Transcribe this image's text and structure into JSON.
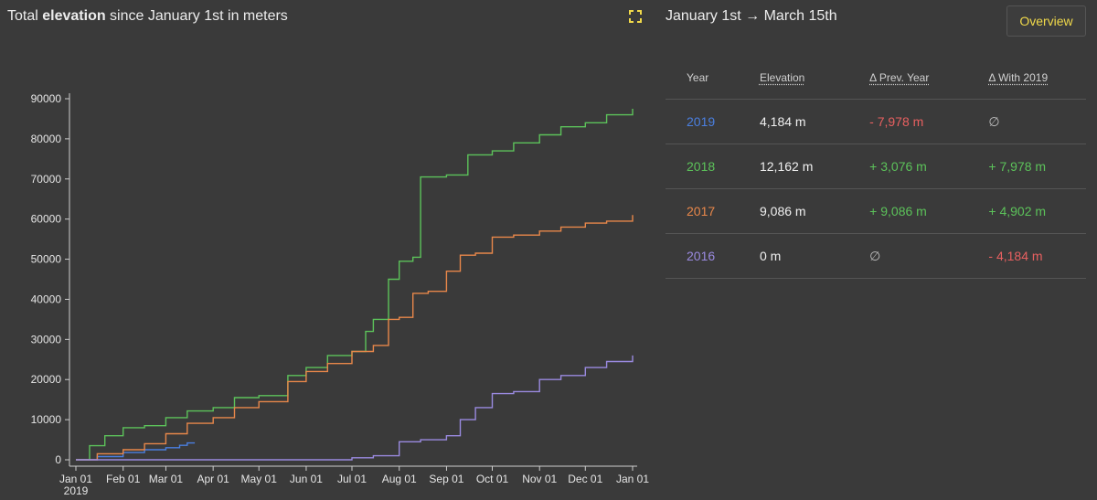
{
  "header": {
    "title_pre": "Total ",
    "title_bold": "elevation",
    "title_post": " since January 1st in meters",
    "range_label": "January 1st → March 15th",
    "overview_label": "Overview"
  },
  "table": {
    "columns": [
      "Year",
      "Elevation",
      "Δ Prev. Year",
      "Δ With 2019"
    ],
    "rows": [
      {
        "year": "2019",
        "elevation": "4,184 m",
        "prev": "- 7,978 m",
        "with2019": "∅"
      },
      {
        "year": "2018",
        "elevation": "12,162 m",
        "prev": "+ 3,076 m",
        "with2019": "+ 7,978 m"
      },
      {
        "year": "2017",
        "elevation": "9,086 m",
        "prev": "+ 9,086 m",
        "with2019": "+ 4,902 m"
      },
      {
        "year": "2016",
        "elevation": "0 m",
        "prev": "∅",
        "with2019": "- 4,184 m"
      }
    ]
  },
  "colors": {
    "2019": "#4a7fe0",
    "2018": "#5cc25a",
    "2017": "#e8874a",
    "2016": "#9a8ae0",
    "accent": "#f0d94a",
    "negative": "#e86060"
  },
  "chart_data": {
    "type": "line",
    "title": "Total elevation since January 1st in meters",
    "xlabel": "",
    "ylabel": "",
    "ylim": [
      0,
      90000
    ],
    "yticks": [
      0,
      10000,
      20000,
      30000,
      40000,
      50000,
      60000,
      70000,
      80000,
      90000
    ],
    "xticks": [
      "Jan 01",
      "Feb 01",
      "Mar 01",
      "Apr 01",
      "May 01",
      "Jun 01",
      "Jul 01",
      "Aug 01",
      "Sep 01",
      "Oct 01",
      "Nov 01",
      "Dec 01",
      "Jan 01"
    ],
    "xtick_sub": "2019",
    "grid": false,
    "series": [
      {
        "name": "2019",
        "color": "#4a7fe0",
        "x": [
          "Jan 01",
          "Jan 15",
          "Feb 01",
          "Feb 15",
          "Mar 01",
          "Mar 10",
          "Mar 15",
          "Mar 20"
        ],
        "y": [
          0,
          800,
          1800,
          2500,
          3000,
          3600,
          4184,
          4200
        ]
      },
      {
        "name": "2018",
        "color": "#5cc25a",
        "x": [
          "Jan 01",
          "Jan 10",
          "Jan 20",
          "Feb 01",
          "Feb 15",
          "Mar 01",
          "Mar 15",
          "Apr 01",
          "Apr 15",
          "May 01",
          "May 20",
          "Jun 01",
          "Jun 15",
          "Jul 01",
          "Jul 10",
          "Jul 15",
          "Jul 25",
          "Aug 01",
          "Aug 10",
          "Aug 15",
          "Sep 01",
          "Sep 15",
          "Oct 01",
          "Oct 15",
          "Nov 01",
          "Nov 15",
          "Dec 01",
          "Dec 15",
          "Jan 01"
        ],
        "y": [
          0,
          3500,
          6000,
          8000,
          8500,
          10500,
          12162,
          13000,
          15500,
          16000,
          21000,
          23000,
          26000,
          27000,
          32000,
          35000,
          45000,
          49500,
          50500,
          70500,
          71000,
          76000,
          77000,
          79000,
          81000,
          83000,
          84000,
          86000,
          87500
        ]
      },
      {
        "name": "2017",
        "color": "#e8874a",
        "x": [
          "Jan 01",
          "Jan 15",
          "Feb 01",
          "Feb 15",
          "Mar 01",
          "Mar 15",
          "Apr 01",
          "Apr 15",
          "May 01",
          "May 20",
          "Jun 01",
          "Jun 15",
          "Jul 01",
          "Jul 15",
          "Jul 25",
          "Aug 01",
          "Aug 10",
          "Aug 20",
          "Sep 01",
          "Sep 10",
          "Sep 20",
          "Oct 01",
          "Oct 15",
          "Nov 01",
          "Nov 15",
          "Dec 01",
          "Dec 15",
          "Jan 01"
        ],
        "y": [
          0,
          1500,
          2500,
          4000,
          6500,
          9086,
          10500,
          13000,
          14500,
          19500,
          22000,
          24000,
          27000,
          28500,
          35000,
          35500,
          41500,
          42000,
          47000,
          51000,
          51500,
          55500,
          56000,
          57000,
          58000,
          59000,
          59500,
          61000
        ]
      },
      {
        "name": "2016",
        "color": "#9a8ae0",
        "x": [
          "Jan 01",
          "Jun 01",
          "Jul 01",
          "Jul 15",
          "Aug 01",
          "Aug 15",
          "Sep 01",
          "Sep 10",
          "Sep 20",
          "Oct 01",
          "Oct 15",
          "Nov 01",
          "Nov 15",
          "Dec 01",
          "Dec 15",
          "Jan 01"
        ],
        "y": [
          0,
          0,
          500,
          1000,
          4500,
          5000,
          6000,
          10000,
          13000,
          16500,
          17000,
          20000,
          21000,
          23000,
          24500,
          26000
        ]
      }
    ]
  }
}
